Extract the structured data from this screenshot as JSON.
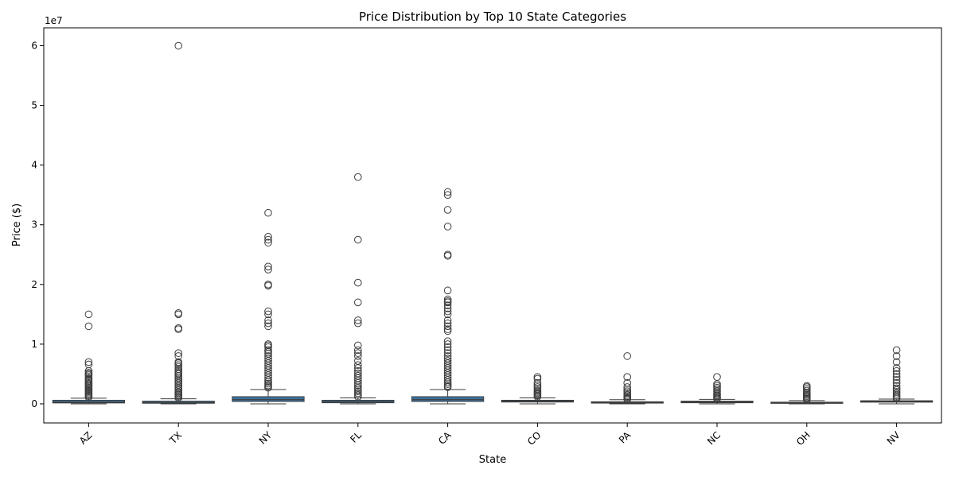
{
  "chart_data": {
    "type": "box",
    "title": "Price Distribution by Top 10 State Categories",
    "xlabel": "State",
    "ylabel": "Price ($)",
    "y_offset_label": "1e7",
    "y_scale": 10000000,
    "ylim": [
      -3200000,
      63000000
    ],
    "yticks": [
      0,
      10000000,
      20000000,
      30000000,
      40000000,
      50000000,
      60000000
    ],
    "ytick_labels": [
      "0",
      "1",
      "2",
      "3",
      "4",
      "5",
      "6"
    ],
    "grid": false,
    "box_color": "#3a73a0",
    "categories": [
      "AZ",
      "TX",
      "NY",
      "FL",
      "CA",
      "CO",
      "PA",
      "NC",
      "OH",
      "NV"
    ],
    "boxes": [
      {
        "category": "AZ",
        "whisker_low": 0,
        "q1": 150000,
        "median": 280000,
        "q3": 600000,
        "whisker_high": 950000,
        "outliers": [
          15000000,
          13000000,
          7000000,
          6600000,
          5500000,
          5200000,
          5000000,
          4800000,
          4500000,
          4200000,
          4000000,
          3800000,
          3500000,
          3300000,
          3100000,
          2900000,
          2700000,
          2500000,
          2300000,
          2100000,
          1900000,
          1700000,
          1500000,
          1300000,
          1100000
        ]
      },
      {
        "category": "TX",
        "whisker_low": 0,
        "q1": 100000,
        "median": 220000,
        "q3": 450000,
        "whisker_high": 850000,
        "outliers": [
          60000000,
          15200000,
          15000000,
          12700000,
          12500000,
          8500000,
          8000000,
          7000000,
          6800000,
          6500000,
          6200000,
          5800000,
          5500000,
          5200000,
          5000000,
          4700000,
          4400000,
          4100000,
          3800000,
          3500000,
          3200000,
          2900000,
          2600000,
          2300000,
          2000000,
          1800000,
          1600000,
          1400000,
          1200000,
          1000000
        ]
      },
      {
        "category": "NY",
        "whisker_low": 0,
        "q1": 400000,
        "median": 700000,
        "q3": 1200000,
        "whisker_high": 2400000,
        "outliers": [
          32000000,
          28000000,
          27500000,
          27000000,
          23000000,
          22500000,
          20000000,
          19800000,
          15500000,
          15000000,
          14000000,
          13500000,
          13000000,
          10000000,
          9800000,
          9500000,
          9000000,
          8700000,
          8400000,
          8000000,
          7600000,
          7200000,
          6800000,
          6400000,
          6000000,
          5600000,
          5200000,
          4800000,
          4400000,
          4000000,
          3700000,
          3400000,
          3100000,
          2900000,
          2700000
        ]
      },
      {
        "category": "FL",
        "whisker_low": 0,
        "q1": 180000,
        "median": 330000,
        "q3": 600000,
        "whisker_high": 1000000,
        "outliers": [
          38000000,
          27500000,
          20300000,
          17000000,
          14000000,
          13500000,
          9800000,
          9000000,
          8500000,
          8000000,
          7200000,
          6500000,
          6000000,
          5500000,
          5100000,
          4700000,
          4300000,
          3900000,
          3500000,
          3100000,
          2700000,
          2400000,
          2100000,
          1800000,
          1500000,
          1200000
        ]
      },
      {
        "category": "CA",
        "whisker_low": 0,
        "q1": 400000,
        "median": 700000,
        "q3": 1200000,
        "whisker_high": 2400000,
        "outliers": [
          35500000,
          35000000,
          32500000,
          29700000,
          25000000,
          24800000,
          19000000,
          17500000,
          17200000,
          17000000,
          16500000,
          16000000,
          15500000,
          15000000,
          14000000,
          13500000,
          13000000,
          12500000,
          12200000,
          10500000,
          10000000,
          9500000,
          9000000,
          8500000,
          8000000,
          7600000,
          7200000,
          6800000,
          6400000,
          6000000,
          5600000,
          5200000,
          4800000,
          4400000,
          4000000,
          3600000,
          3300000,
          3000000,
          2800000
        ]
      },
      {
        "category": "CO",
        "whisker_low": 0,
        "q1": 300000,
        "median": 450000,
        "q3": 600000,
        "whisker_high": 1000000,
        "outliers": [
          4500000,
          4200000,
          3500000,
          3100000,
          2800000,
          2500000,
          2200000,
          2000000,
          1800000,
          1600000,
          1400000,
          1200000
        ]
      },
      {
        "category": "PA",
        "whisker_low": 0,
        "q1": 120000,
        "median": 220000,
        "q3": 350000,
        "whisker_high": 700000,
        "outliers": [
          8000000,
          4500000,
          3500000,
          2800000,
          2400000,
          2100000,
          1800000,
          1500000,
          1300000,
          1100000,
          900000,
          800000
        ]
      },
      {
        "category": "NC",
        "whisker_low": 0,
        "q1": 180000,
        "median": 300000,
        "q3": 450000,
        "whisker_high": 750000,
        "outliers": [
          4500000,
          3300000,
          3000000,
          2700000,
          2400000,
          2100000,
          1800000,
          1600000,
          1400000,
          1200000,
          1000000,
          850000
        ]
      },
      {
        "category": "OH",
        "whisker_low": 0,
        "q1": 80000,
        "median": 150000,
        "q3": 280000,
        "whisker_high": 550000,
        "outliers": [
          3000000,
          2800000,
          2500000,
          2200000,
          1900000,
          1700000,
          1500000,
          1300000,
          1100000,
          900000,
          700000
        ]
      },
      {
        "category": "NV",
        "whisker_low": 0,
        "q1": 280000,
        "median": 400000,
        "q3": 520000,
        "whisker_high": 800000,
        "outliers": [
          9000000,
          8000000,
          7000000,
          6000000,
          5500000,
          5000000,
          4500000,
          4000000,
          3500000,
          3000000,
          2600000,
          2300000,
          2000000,
          1700000,
          1400000,
          1100000,
          900000
        ]
      }
    ]
  }
}
